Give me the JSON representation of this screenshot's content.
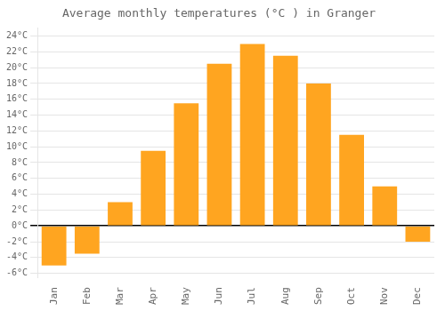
{
  "chart_data": {
    "type": "bar",
    "title": "Average monthly temperatures (°C ) in Granger",
    "categories": [
      "Jan",
      "Feb",
      "Mar",
      "Apr",
      "May",
      "Jun",
      "Jul",
      "Aug",
      "Sep",
      "Oct",
      "Nov",
      "Dec"
    ],
    "values": [
      -5.0,
      -3.5,
      3.0,
      9.5,
      15.5,
      20.5,
      23.0,
      21.5,
      18.0,
      11.5,
      5.0,
      -2.0
    ],
    "color": "#FFA520",
    "ylim": [
      -6.5,
      25
    ],
    "yticks": [
      {
        "value": -6,
        "label": "-6°C"
      },
      {
        "value": -4,
        "label": "-4°C"
      },
      {
        "value": -2,
        "label": "-2°C"
      },
      {
        "value": 0,
        "label": "0°C"
      },
      {
        "value": 2,
        "label": "2°C"
      },
      {
        "value": 4,
        "label": "4°C"
      },
      {
        "value": 6,
        "label": "6°C"
      },
      {
        "value": 8,
        "label": "8°C"
      },
      {
        "value": 10,
        "label": "10°C"
      },
      {
        "value": 12,
        "label": "12°C"
      },
      {
        "value": 14,
        "label": "14°C"
      },
      {
        "value": 16,
        "label": "16°C"
      },
      {
        "value": 18,
        "label": "18°C"
      },
      {
        "value": 20,
        "label": "20°C"
      },
      {
        "value": 22,
        "label": "22°C"
      },
      {
        "value": 24,
        "label": "24°C"
      }
    ],
    "grid": true
  }
}
